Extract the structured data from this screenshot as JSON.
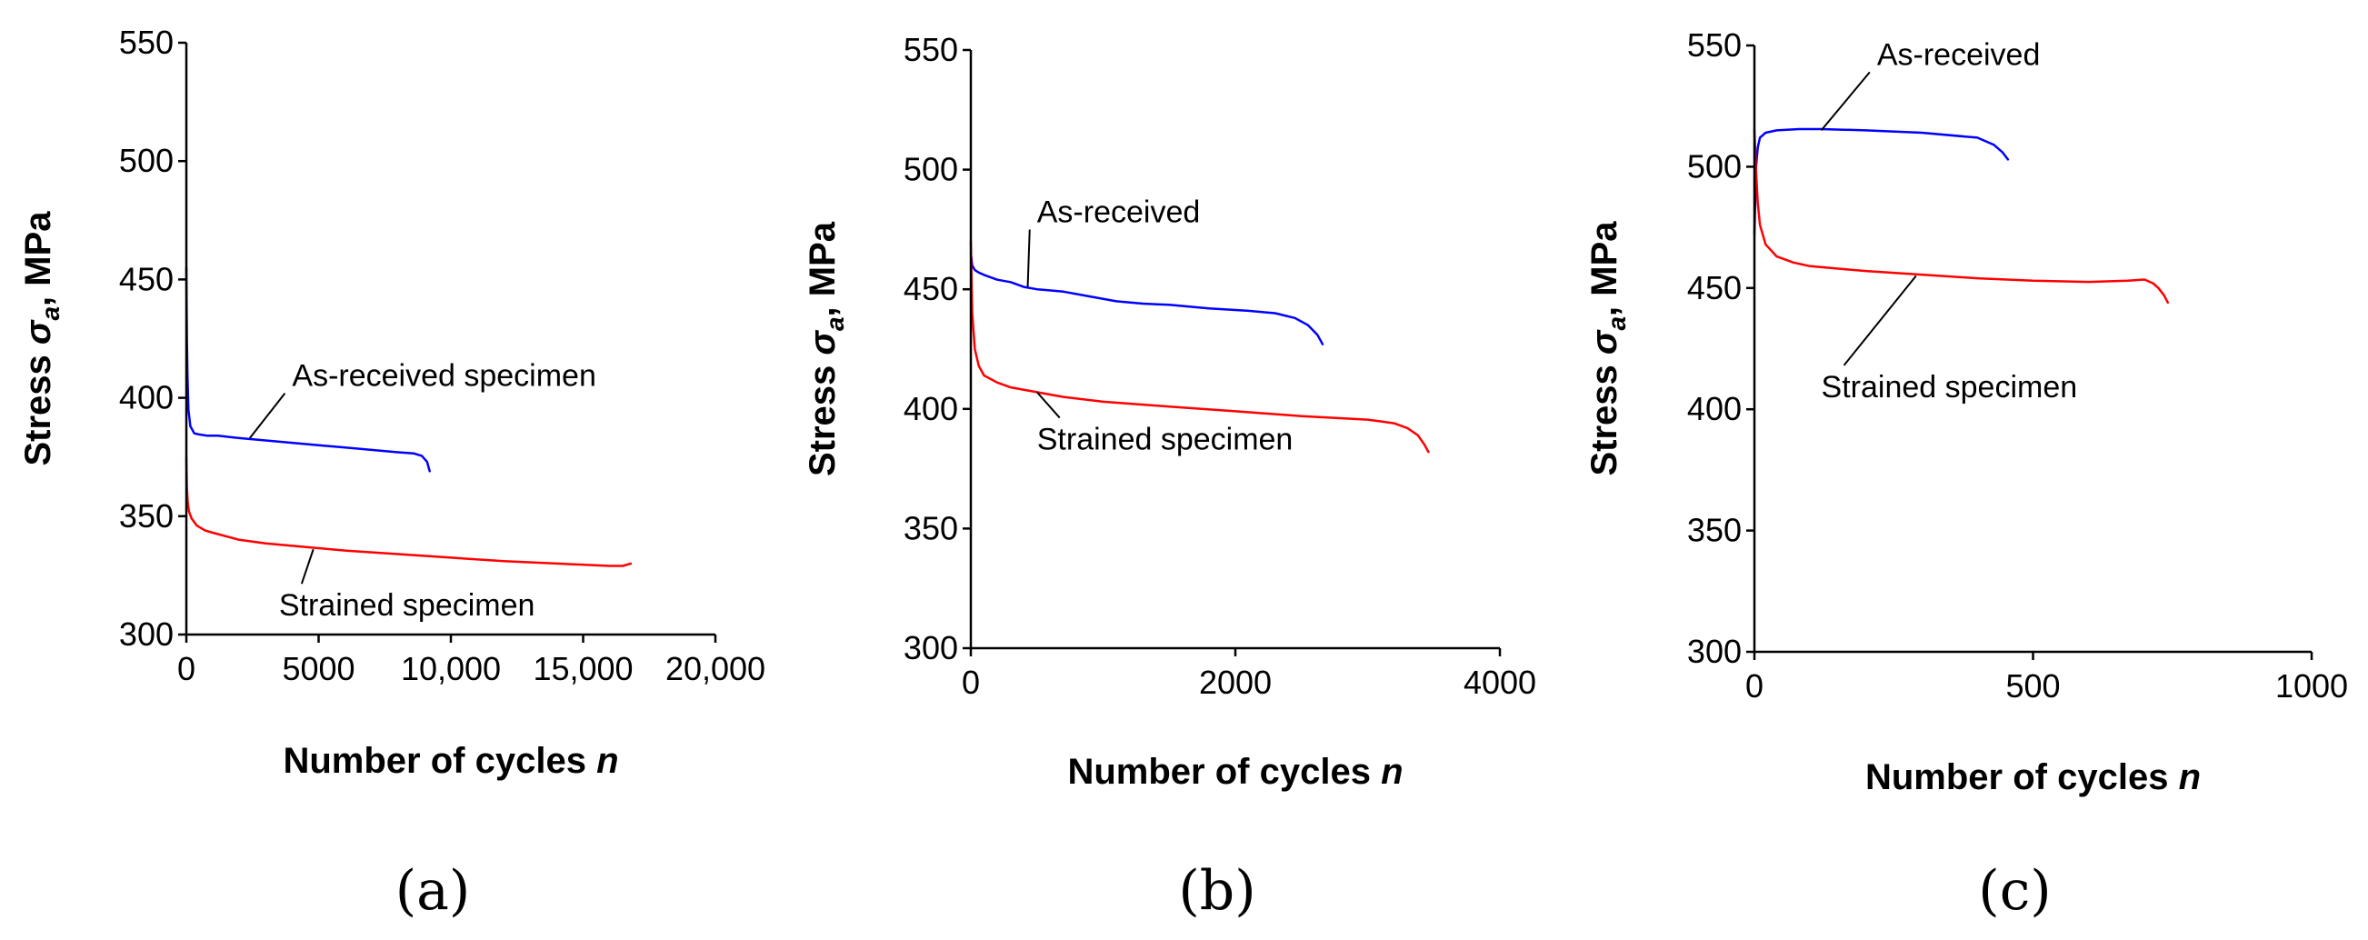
{
  "chart_data": [
    {
      "type": "line",
      "panel_label": "(a)",
      "xlabel": "Number of cycles ",
      "xlabel_var": "n",
      "ylabel": "Stress ",
      "ylabel_sym": "σ",
      "ylabel_sub": "a",
      "ylabel_unit": ", MPa",
      "xlim": [
        0,
        20000
      ],
      "ylim": [
        300,
        550
      ],
      "x_ticks": [
        0,
        5000,
        10000,
        15000,
        20000
      ],
      "x_tick_labels": [
        "0",
        "5000",
        "10,000",
        "15,000",
        "20,000"
      ],
      "y_ticks": [
        300,
        350,
        400,
        450,
        500,
        550
      ],
      "y_tick_labels": [
        "300",
        "350",
        "400",
        "450",
        "500",
        "550"
      ],
      "series": [
        {
          "name": "As-received specimen",
          "color": "#0000ff",
          "x": [
            0,
            20,
            40,
            80,
            150,
            300,
            500,
            800,
            1200,
            2000,
            3000,
            4000,
            5000,
            6000,
            7000,
            8000,
            8600,
            8900,
            9100,
            9200
          ],
          "y": [
            455,
            425,
            410,
            395,
            388,
            385,
            384.5,
            384,
            384,
            383,
            382,
            381,
            380,
            379,
            378,
            377,
            376.5,
            375.5,
            373,
            369
          ]
        },
        {
          "name": "Strained specimen",
          "color": "#ff0000",
          "x": [
            0,
            20,
            50,
            100,
            200,
            400,
            700,
            1000,
            1500,
            2000,
            3000,
            4000,
            5000,
            6000,
            8000,
            10000,
            12000,
            14000,
            16000,
            16500,
            16800
          ],
          "y": [
            375,
            362,
            356,
            352,
            349,
            346,
            344,
            343,
            341.5,
            340,
            338.5,
            337.5,
            336.5,
            335.5,
            334,
            332.5,
            331,
            330,
            329,
            329,
            330
          ]
        }
      ],
      "annotations": [
        {
          "text": "As-received specimen",
          "x": 4000,
          "y": 405,
          "point_x": 2400,
          "point_y": 383
        },
        {
          "text": "Strained specimen",
          "x": 3500,
          "y": 308,
          "point_x": 4800,
          "point_y": 336
        }
      ]
    },
    {
      "type": "line",
      "panel_label": "(b)",
      "xlabel": "Number of cycles ",
      "xlabel_var": "n",
      "ylabel": "Stress ",
      "ylabel_sym": "σ",
      "ylabel_sub": "a",
      "ylabel_unit": ", MPa",
      "xlim": [
        0,
        4000
      ],
      "ylim": [
        300,
        550
      ],
      "x_ticks": [
        0,
        2000,
        4000
      ],
      "x_tick_labels": [
        "0",
        "2000",
        "4000"
      ],
      "y_ticks": [
        300,
        350,
        400,
        450,
        500,
        550
      ],
      "y_tick_labels": [
        "300",
        "350",
        "400",
        "450",
        "500",
        "550"
      ],
      "series": [
        {
          "name": "As-received",
          "color": "#0000ff",
          "x": [
            0,
            10,
            30,
            60,
            100,
            200,
            300,
            400,
            500,
            700,
            900,
            1100,
            1300,
            1500,
            1800,
            2100,
            2300,
            2450,
            2550,
            2620,
            2660
          ],
          "y": [
            465,
            460,
            458,
            457,
            456,
            454,
            453,
            451,
            450,
            449,
            447,
            445,
            444,
            443.5,
            442,
            441,
            440,
            438,
            435,
            431,
            427
          ]
        },
        {
          "name": "Strained specimen",
          "color": "#ff0000",
          "x": [
            0,
            10,
            30,
            60,
            100,
            200,
            300,
            500,
            700,
            1000,
            1500,
            2000,
            2500,
            3000,
            3200,
            3300,
            3380,
            3430,
            3460
          ],
          "y": [
            470,
            440,
            425,
            418,
            414,
            411,
            409,
            407,
            405,
            403,
            401,
            399,
            397,
            395.5,
            394,
            392,
            389,
            385,
            382
          ]
        }
      ],
      "annotations": [
        {
          "text": "As-received",
          "x": 500,
          "y": 478,
          "point_x": 430,
          "point_y": 451
        },
        {
          "text": "Strained specimen",
          "x": 500,
          "y": 383,
          "point_x": 500,
          "point_y": 407
        }
      ]
    },
    {
      "type": "line",
      "panel_label": "(c)",
      "xlabel": "Number of cycles ",
      "xlabel_var": "n",
      "ylabel": "Stress ",
      "ylabel_sym": "σ",
      "ylabel_sub": "a",
      "ylabel_unit": ", MPa",
      "xlim": [
        0,
        1000
      ],
      "ylim": [
        300,
        550
      ],
      "x_ticks": [
        0,
        500,
        1000
      ],
      "x_tick_labels": [
        "0",
        "500",
        "1000"
      ],
      "y_ticks": [
        300,
        350,
        400,
        450,
        500,
        550
      ],
      "y_tick_labels": [
        "300",
        "350",
        "400",
        "450",
        "500",
        "550"
      ],
      "series": [
        {
          "name": "As-received",
          "color": "#0000ff",
          "x": [
            0,
            3,
            6,
            10,
            20,
            40,
            80,
            120,
            200,
            300,
            400,
            430,
            445,
            455
          ],
          "y": [
            472,
            500,
            508,
            512,
            514,
            515,
            515.5,
            515.5,
            515,
            514,
            512,
            509,
            506,
            503
          ]
        },
        {
          "name": "Strained specimen",
          "color": "#ff0000",
          "x": [
            0,
            3,
            6,
            10,
            20,
            40,
            70,
            100,
            150,
            200,
            300,
            400,
            500,
            600,
            670,
            700,
            715,
            725,
            735,
            742
          ],
          "y": [
            515,
            498,
            485,
            476,
            468,
            463,
            460.5,
            459,
            458,
            457,
            455.5,
            454,
            453,
            452.5,
            453,
            453.5,
            452,
            450,
            447,
            444
          ]
        }
      ],
      "annotations": [
        {
          "text": "As-received",
          "x": 220,
          "y": 542,
          "point_x": 120,
          "point_y": 515
        },
        {
          "text": "Strained specimen",
          "x": 120,
          "y": 405,
          "point_x": 290,
          "point_y": 455
        }
      ]
    }
  ]
}
